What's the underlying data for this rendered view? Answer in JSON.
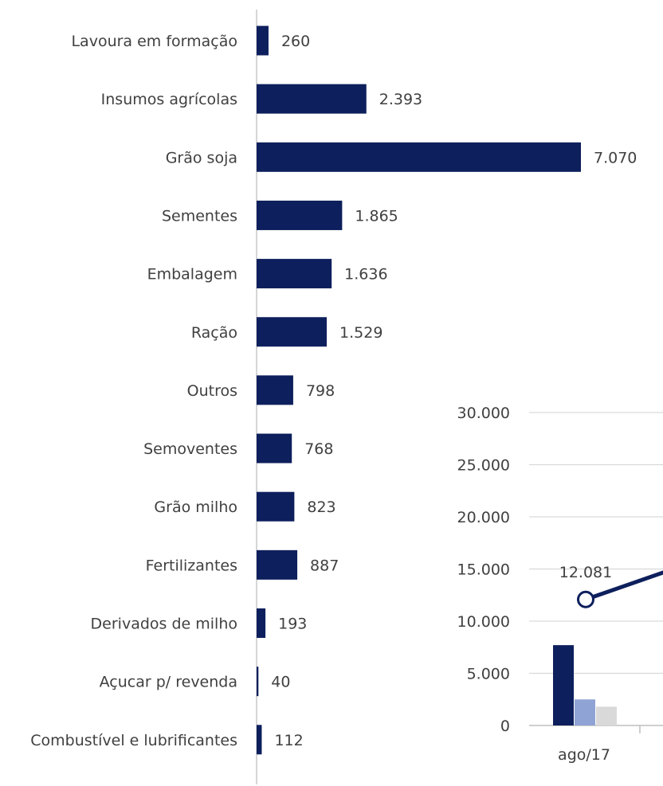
{
  "chart_data": [
    {
      "type": "bar",
      "orientation": "horizontal",
      "categories": [
        "Lavoura em formação",
        "Insumos agrícolas",
        "Grão soja",
        "Sementes",
        "Embalagem",
        "Ração",
        "Outros",
        "Semoventes",
        "Grão milho",
        "Fertilizantes",
        "Derivados de milho",
        "Açucar p/ revenda",
        "Combustível e lubrificantes"
      ],
      "values": [
        260,
        2393,
        7070,
        1865,
        1636,
        1529,
        798,
        768,
        823,
        887,
        193,
        40,
        112
      ],
      "value_labels": [
        "260",
        "2.393",
        "7.070",
        "1.865",
        "1.636",
        "1.529",
        "798",
        "768",
        "823",
        "887",
        "193",
        "40",
        "112"
      ],
      "xlim": [
        0,
        7070
      ],
      "colors": {
        "bar": "#0d1f5c",
        "axis": "#c8c8c8"
      }
    },
    {
      "type": "bar+line",
      "categories": [
        "ago/17"
      ],
      "bar_series": [
        {
          "values": [
            7700
          ],
          "color": "#0d1f5c"
        },
        {
          "values": [
            2500
          ],
          "color": "#8fa3d4"
        },
        {
          "values": [
            1800
          ],
          "color": "#d9d9d9"
        }
      ],
      "line_series": [
        {
          "values": [
            12081
          ],
          "color": "#0d1f5c"
        }
      ],
      "line_value_labels": [
        "12.081"
      ],
      "line_continues_up_right": true,
      "ylim": [
        0,
        30000
      ],
      "y_ticks": [
        0,
        5000,
        10000,
        15000,
        20000,
        25000,
        30000
      ],
      "y_tick_labels": [
        "0",
        "5.000",
        "10.000",
        "15.000",
        "20.000",
        "25.000",
        "30.000"
      ],
      "grid": true,
      "colors": {
        "grid": "#d9d9d9",
        "axis": "#bfbfbf"
      }
    }
  ]
}
